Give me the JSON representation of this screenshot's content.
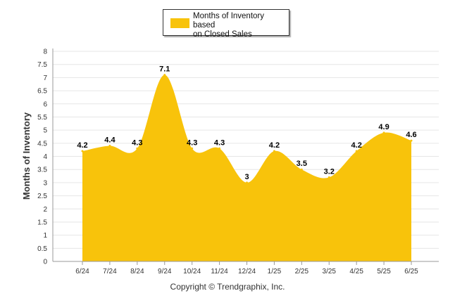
{
  "chart_data": {
    "type": "area",
    "categories": [
      "6/24",
      "7/24",
      "8/24",
      "9/24",
      "10/24",
      "11/24",
      "12/24",
      "1/25",
      "2/25",
      "3/25",
      "4/25",
      "5/25",
      "6/25"
    ],
    "series": [
      {
        "name": "Months of Inventory based on Closed Sales",
        "values": [
          4.2,
          4.4,
          4.3,
          7.1,
          4.3,
          4.3,
          3,
          4.2,
          3.5,
          3.2,
          4.2,
          4.9,
          4.6
        ]
      }
    ],
    "data_labels": [
      "4.2",
      "4.4",
      "4.3",
      "7.1",
      "4.3",
      "4.3",
      "3",
      "4.2",
      "3.5",
      "3.2",
      "4.2",
      "4.9",
      "4.6"
    ],
    "ylabel": "Months of Inventory",
    "xlabel": "",
    "ylim": [
      0,
      8
    ],
    "yticks": [
      "0",
      "0.5",
      "1",
      "1.5",
      "2",
      "2.5",
      "3",
      "3.5",
      "4",
      "4.5",
      "5",
      "5.5",
      "6",
      "6.5",
      "7",
      "7.5",
      "8"
    ],
    "legend_position": "top-center",
    "grid": true,
    "colors": {
      "fill": "#F8C30B",
      "grid": "#e6e6e6",
      "axis": "#999999"
    }
  },
  "legend": {
    "label_line1": "Months of Inventory based",
    "label_line2": "on Closed Sales"
  },
  "footer": {
    "copyright": "Copyright © Trendgraphix, Inc."
  }
}
